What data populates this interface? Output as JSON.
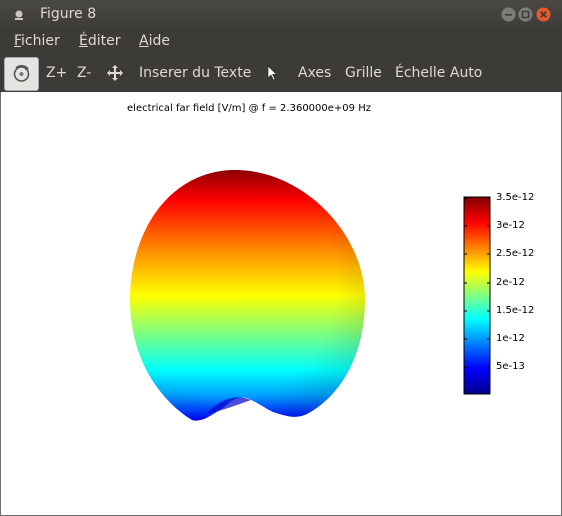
{
  "window": {
    "title": "Figure 8"
  },
  "menu": [
    {
      "label": "Fichier",
      "accel": "F",
      "rest": "ichier"
    },
    {
      "label": "Éditer",
      "accel": "É",
      "rest": "diter"
    },
    {
      "label": "Aide",
      "accel": "A",
      "rest": "ide"
    }
  ],
  "toolbar": {
    "rotate_icon": "rotate-3d-icon",
    "zoom_in": "Z+",
    "zoom_out": "Z-",
    "pan_icon": "pan-arrows-icon",
    "insert_text": "Inserer du Texte",
    "select_icon": "pointer-icon",
    "axes": "Axes",
    "grid": "Grille",
    "autoscale": "Échelle Auto"
  },
  "plot": {
    "title": "electrical far field [V/m] @ f = 2.360000e+09 Hz",
    "colormap": "jet",
    "colorbar_ticks": [
      "3.5e-12",
      "3e-12",
      "2.5e-12",
      "2e-12",
      "1.5e-12",
      "1e-12",
      "5e-13"
    ]
  }
}
